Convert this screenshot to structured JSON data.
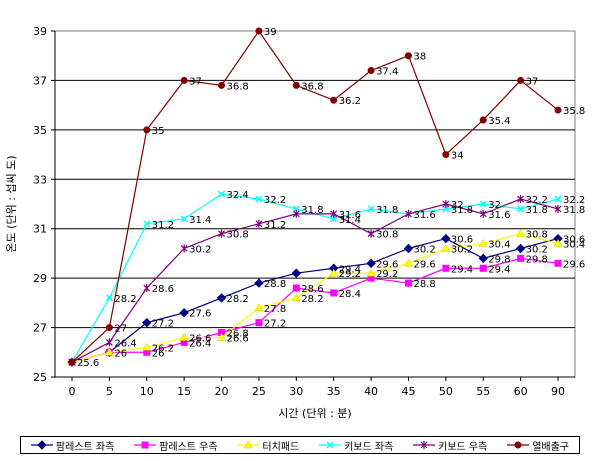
{
  "chart_data": {
    "type": "line",
    "title": "",
    "xlabel": "시간 (단위 : 분)",
    "ylabel": "온도 (단위 : 섭씨 도)",
    "x": [
      0,
      5,
      10,
      15,
      20,
      25,
      30,
      35,
      40,
      45,
      50,
      55,
      60,
      90
    ],
    "x_tick_labels": [
      "0",
      "5",
      "10",
      "15",
      "20",
      "25",
      "30",
      "35",
      "40",
      "45",
      "50",
      "55",
      "60",
      "90"
    ],
    "ylim": [
      25,
      39
    ],
    "y_ticks": [
      25,
      27,
      29,
      31,
      33,
      35,
      37,
      39
    ],
    "grid": "horizontal",
    "legend_position": "bottom",
    "series": [
      {
        "name": "팜레스트 좌측",
        "color": "#000080",
        "marker": "diamond",
        "values": [
          25.6,
          26.0,
          27.2,
          27.6,
          28.2,
          28.8,
          29.2,
          29.4,
          29.6,
          30.2,
          30.6,
          29.8,
          30.2,
          30.6
        ],
        "labels": [
          "25.6",
          "",
          "27.2",
          "27.6",
          "28.2",
          "28.8",
          "",
          "29.4",
          "29.6",
          "30.2",
          "30.6",
          "29.8",
          "30.2",
          "30.6"
        ]
      },
      {
        "name": "팜레스트 우측",
        "color": "#FF00FF",
        "marker": "square",
        "values": [
          25.6,
          26.0,
          26.0,
          26.4,
          26.8,
          27.2,
          28.6,
          28.4,
          29.0,
          28.8,
          29.4,
          29.4,
          29.8,
          29.6
        ],
        "labels": [
          "",
          "26",
          "26",
          "26.4",
          "26.8",
          "27.2",
          "28.6",
          "28.4",
          "",
          "28.8",
          "29.4",
          "29.4",
          "29.8",
          "29.6"
        ]
      },
      {
        "name": "터치패드",
        "color": "#FFFF00",
        "marker": "triangle",
        "values": [
          25.6,
          26.0,
          26.2,
          26.6,
          26.6,
          27.8,
          28.2,
          29.2,
          29.2,
          29.6,
          30.2,
          30.4,
          30.8,
          30.4
        ],
        "labels": [
          "",
          "",
          "26.2",
          "26.6",
          "26.6",
          "27.8",
          "28.2",
          "29.2",
          "29.2",
          "29.6",
          "30.2",
          "30.4",
          "30.8",
          "30.4"
        ]
      },
      {
        "name": "키보드 좌측",
        "color": "#00FFFF",
        "marker": "x",
        "values": [
          25.6,
          28.2,
          31.2,
          31.4,
          32.4,
          32.2,
          31.8,
          31.4,
          31.8,
          31.6,
          31.8,
          32.0,
          31.8,
          32.2
        ],
        "labels": [
          "",
          "28.2",
          "31.2",
          "31.4",
          "32.4",
          "32.2",
          "31.8",
          "31.4",
          "31.8",
          "31.6",
          "31.8",
          "32",
          "31.8",
          "32.2"
        ]
      },
      {
        "name": "키보드 우측",
        "color": "#800080",
        "marker": "star",
        "values": [
          25.6,
          26.4,
          28.6,
          30.2,
          30.8,
          31.2,
          31.6,
          31.6,
          30.8,
          31.6,
          32.0,
          31.6,
          32.2,
          31.8
        ],
        "labels": [
          "",
          "26.4",
          "28.6",
          "30.2",
          "30.8",
          "31.2",
          "",
          "31.6",
          "30.8",
          "",
          "32",
          "31.6",
          "32.2",
          "31.8"
        ]
      },
      {
        "name": "열배출구",
        "color": "#800000",
        "marker": "circle",
        "values": [
          25.6,
          27.0,
          35.0,
          37.0,
          36.8,
          39.0,
          36.8,
          36.2,
          37.4,
          38.0,
          34.0,
          35.4,
          37.0,
          35.8
        ],
        "labels": [
          "",
          "27",
          "35",
          "37",
          "36.8",
          "39",
          "36.8",
          "36.2",
          "37.4",
          "38",
          "34",
          "35.4",
          "37",
          "35.8"
        ]
      }
    ]
  }
}
